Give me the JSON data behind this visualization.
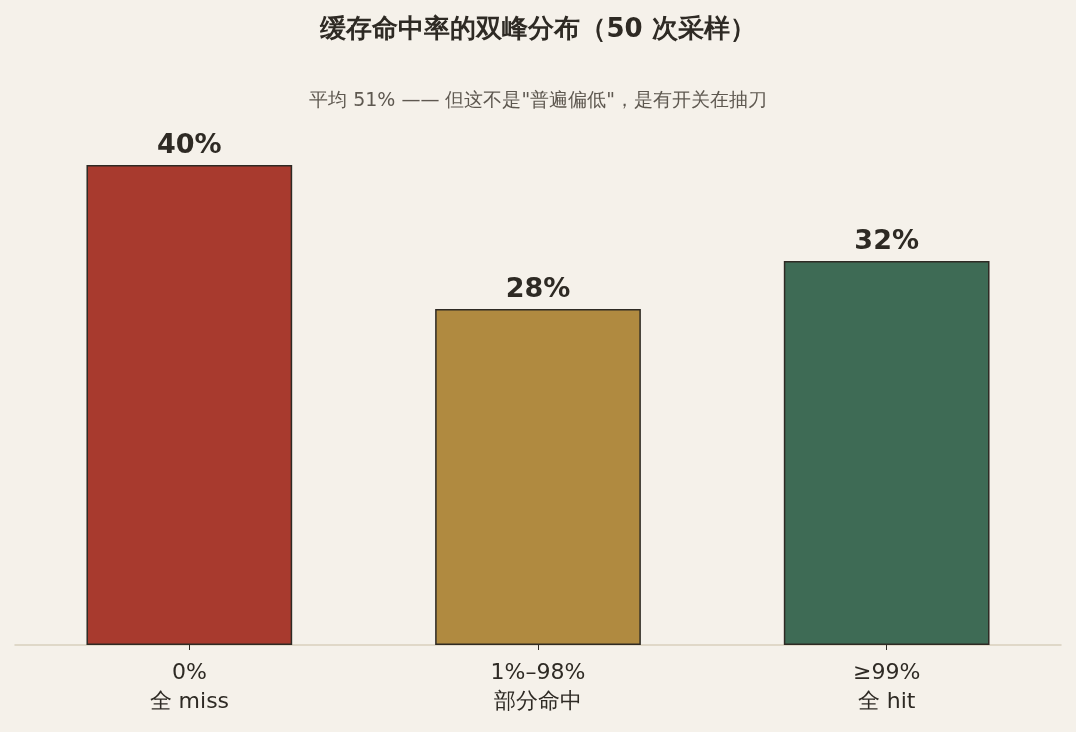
{
  "chart_data": {
    "type": "bar",
    "title": "缓存命中率的双峰分布（50 次采样）",
    "subtitle": "平均 51% —— 但这不是\"普遍偏低\"，是有开关在抽刀",
    "categories": [
      "0%\n全 miss",
      "1%–98%\n部分命中",
      "≥99%\n全 hit"
    ],
    "values": [
      40,
      28,
      32
    ],
    "colors": [
      "#a83a2e",
      "#b08a40",
      "#3e6b55"
    ],
    "value_labels": [
      "40%",
      "28%",
      "32%"
    ],
    "tick_labels": "x"
  }
}
